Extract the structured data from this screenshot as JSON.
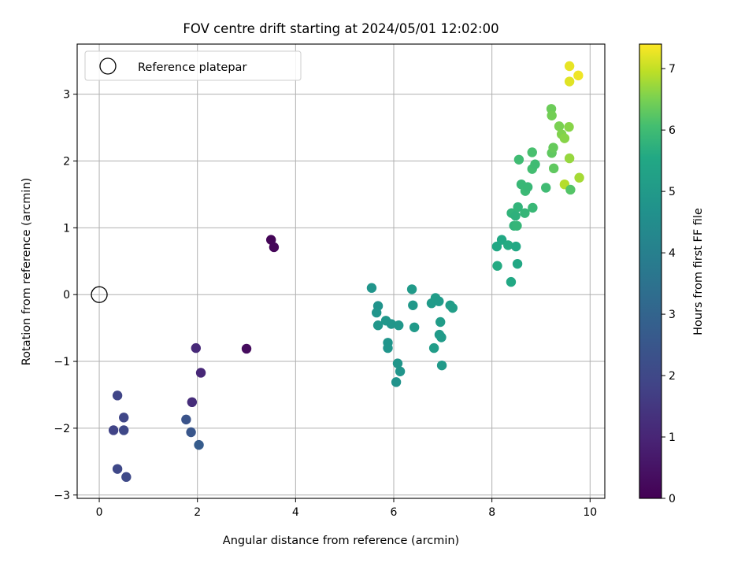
{
  "chart_data": {
    "type": "scatter",
    "title": "FOV centre drift starting at 2024/05/01 12:02:00",
    "xlabel": "Angular distance from reference (arcmin)",
    "ylabel": "Rotation from reference (arcmin)",
    "xlim": [
      -0.45,
      10.3
    ],
    "ylim": [
      -3.05,
      3.75
    ],
    "xticks": [
      0,
      2,
      4,
      6,
      8,
      10
    ],
    "yticks": [
      -3,
      -2,
      -1,
      0,
      1,
      2,
      3
    ],
    "grid": true,
    "legend": {
      "placement": "upper-left",
      "entries": [
        "Reference platepar"
      ]
    },
    "reference": {
      "x": 0,
      "y": 0,
      "label": "Reference platepar"
    },
    "colorbar": {
      "label": "Hours from first FF file",
      "range": [
        0,
        7.4
      ],
      "ticks": [
        0,
        1,
        2,
        3,
        4,
        5,
        6,
        7
      ],
      "colormap": "viridis"
    },
    "points": [
      {
        "x": 3.5,
        "y": 0.82,
        "hours": 0.1
      },
      {
        "x": 3.56,
        "y": 0.71,
        "hours": 0.15
      },
      {
        "x": 3.0,
        "y": -0.81,
        "hours": 0.3
      },
      {
        "x": 1.97,
        "y": -0.8,
        "hours": 1.1
      },
      {
        "x": 2.07,
        "y": -1.17,
        "hours": 1.05
      },
      {
        "x": 1.89,
        "y": -1.61,
        "hours": 1.2
      },
      {
        "x": 0.37,
        "y": -1.51,
        "hours": 1.9
      },
      {
        "x": 0.5,
        "y": -1.84,
        "hours": 1.95
      },
      {
        "x": 0.29,
        "y": -2.03,
        "hours": 1.85
      },
      {
        "x": 0.5,
        "y": -2.03,
        "hours": 2.0
      },
      {
        "x": 0.37,
        "y": -2.61,
        "hours": 2.0
      },
      {
        "x": 0.55,
        "y": -2.73,
        "hours": 2.05
      },
      {
        "x": 1.77,
        "y": -1.87,
        "hours": 2.4
      },
      {
        "x": 1.87,
        "y": -2.06,
        "hours": 2.5
      },
      {
        "x": 2.03,
        "y": -2.25,
        "hours": 2.7
      },
      {
        "x": 5.55,
        "y": 0.1,
        "hours": 4.8
      },
      {
        "x": 5.68,
        "y": -0.17,
        "hours": 4.75
      },
      {
        "x": 5.65,
        "y": -0.27,
        "hours": 4.8
      },
      {
        "x": 5.68,
        "y": -0.46,
        "hours": 4.85
      },
      {
        "x": 5.84,
        "y": -0.39,
        "hours": 4.9
      },
      {
        "x": 5.95,
        "y": -0.44,
        "hours": 4.85
      },
      {
        "x": 6.1,
        "y": -0.46,
        "hours": 4.9
      },
      {
        "x": 5.88,
        "y": -0.72,
        "hours": 4.8
      },
      {
        "x": 5.88,
        "y": -0.8,
        "hours": 4.8
      },
      {
        "x": 6.08,
        "y": -1.03,
        "hours": 4.85
      },
      {
        "x": 6.13,
        "y": -1.15,
        "hours": 4.8
      },
      {
        "x": 6.05,
        "y": -1.31,
        "hours": 4.75
      },
      {
        "x": 6.37,
        "y": 0.08,
        "hours": 5.0
      },
      {
        "x": 6.39,
        "y": -0.16,
        "hours": 4.95
      },
      {
        "x": 6.42,
        "y": -0.49,
        "hours": 5.0
      },
      {
        "x": 6.77,
        "y": -0.13,
        "hours": 5.05
      },
      {
        "x": 6.85,
        "y": -0.05,
        "hours": 5.1
      },
      {
        "x": 6.92,
        "y": -0.1,
        "hours": 5.05
      },
      {
        "x": 6.95,
        "y": -0.41,
        "hours": 5.1
      },
      {
        "x": 6.93,
        "y": -0.6,
        "hours": 5.0
      },
      {
        "x": 6.97,
        "y": -0.64,
        "hours": 5.05
      },
      {
        "x": 6.82,
        "y": -0.8,
        "hours": 5.1
      },
      {
        "x": 6.98,
        "y": -1.06,
        "hours": 5.0
      },
      {
        "x": 7.15,
        "y": -0.16,
        "hours": 5.1
      },
      {
        "x": 7.2,
        "y": -0.2,
        "hours": 5.15
      },
      {
        "x": 8.1,
        "y": 0.72,
        "hours": 5.5
      },
      {
        "x": 8.2,
        "y": 0.82,
        "hours": 5.55
      },
      {
        "x": 8.33,
        "y": 0.74,
        "hours": 5.6
      },
      {
        "x": 8.49,
        "y": 0.72,
        "hours": 5.55
      },
      {
        "x": 8.11,
        "y": 0.43,
        "hours": 5.6
      },
      {
        "x": 8.52,
        "y": 0.46,
        "hours": 5.5
      },
      {
        "x": 8.39,
        "y": 0.19,
        "hours": 5.55
      },
      {
        "x": 8.4,
        "y": 1.22,
        "hours": 5.8
      },
      {
        "x": 8.48,
        "y": 1.18,
        "hours": 5.75
      },
      {
        "x": 8.45,
        "y": 1.03,
        "hours": 5.8
      },
      {
        "x": 8.51,
        "y": 1.03,
        "hours": 5.85
      },
      {
        "x": 8.53,
        "y": 1.31,
        "hours": 5.8
      },
      {
        "x": 8.67,
        "y": 1.22,
        "hours": 5.85
      },
      {
        "x": 8.83,
        "y": 1.3,
        "hours": 5.9
      },
      {
        "x": 8.6,
        "y": 1.65,
        "hours": 5.9
      },
      {
        "x": 8.68,
        "y": 1.55,
        "hours": 5.95
      },
      {
        "x": 8.73,
        "y": 1.61,
        "hours": 5.9
      },
      {
        "x": 9.1,
        "y": 1.6,
        "hours": 6.0
      },
      {
        "x": 8.55,
        "y": 2.02,
        "hours": 6.0
      },
      {
        "x": 8.82,
        "y": 1.88,
        "hours": 6.05
      },
      {
        "x": 8.88,
        "y": 1.95,
        "hours": 6.0
      },
      {
        "x": 8.82,
        "y": 2.13,
        "hours": 6.1
      },
      {
        "x": 9.22,
        "y": 2.12,
        "hours": 6.3
      },
      {
        "x": 9.25,
        "y": 2.2,
        "hours": 6.35
      },
      {
        "x": 9.26,
        "y": 1.89,
        "hours": 6.3
      },
      {
        "x": 9.21,
        "y": 2.78,
        "hours": 6.4
      },
      {
        "x": 9.22,
        "y": 2.68,
        "hours": 6.45
      },
      {
        "x": 9.37,
        "y": 2.52,
        "hours": 6.5
      },
      {
        "x": 9.42,
        "y": 2.4,
        "hours": 6.55
      },
      {
        "x": 9.48,
        "y": 2.34,
        "hours": 6.6
      },
      {
        "x": 9.57,
        "y": 2.51,
        "hours": 6.6
      },
      {
        "x": 9.58,
        "y": 2.04,
        "hours": 6.7
      },
      {
        "x": 9.48,
        "y": 1.65,
        "hours": 6.9
      },
      {
        "x": 9.6,
        "y": 1.57,
        "hours": 6.2
      },
      {
        "x": 9.78,
        "y": 1.75,
        "hours": 6.8
      },
      {
        "x": 9.58,
        "y": 3.42,
        "hours": 7.25
      },
      {
        "x": 9.58,
        "y": 3.19,
        "hours": 7.2
      },
      {
        "x": 9.76,
        "y": 3.28,
        "hours": 7.3
      }
    ]
  }
}
